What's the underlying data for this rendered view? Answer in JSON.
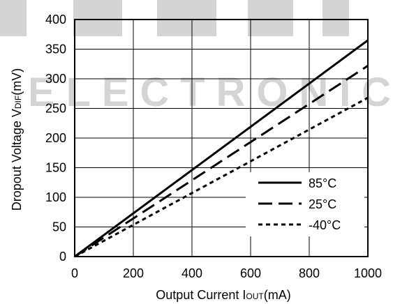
{
  "watermark": {
    "text": "ELECTRONIC",
    "color": "#d4d4d4"
  },
  "chart_data": {
    "type": "line",
    "xlabel_main": "Output Current I",
    "xlabel_sub": "OUT",
    "xlabel_unit": "(mA)",
    "ylabel_main": "Dropout Voltage V",
    "ylabel_sub": "DIF",
    "ylabel_unit": "(mV)",
    "xlim": [
      0,
      1000
    ],
    "ylim": [
      0,
      400
    ],
    "xticks": [
      "0",
      "200",
      "400",
      "600",
      "800",
      "1000"
    ],
    "yticks": [
      "0",
      "50",
      "100",
      "150",
      "200",
      "250",
      "300",
      "350",
      "400"
    ],
    "xtick_values": [
      0,
      200,
      400,
      600,
      800,
      1000
    ],
    "ytick_values": [
      0,
      50,
      100,
      150,
      200,
      250,
      300,
      350,
      400
    ],
    "grid": true,
    "legend_position": "bottom-right",
    "series": [
      {
        "name": "85°C",
        "style": "solid",
        "x": [
          0,
          1000
        ],
        "y": [
          0,
          365
        ]
      },
      {
        "name": "25°C",
        "style": "long-dash",
        "x": [
          0,
          1000
        ],
        "y": [
          0,
          322
        ]
      },
      {
        "name": "-40°C",
        "style": "short-dash",
        "x": [
          0,
          1000
        ],
        "y": [
          0,
          268
        ]
      }
    ]
  }
}
